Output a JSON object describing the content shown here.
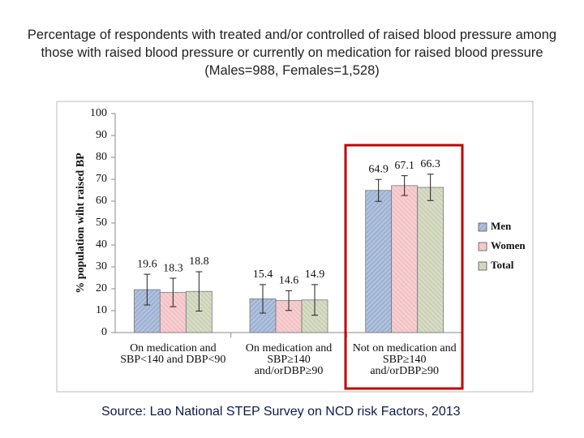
{
  "chart_data": {
    "type": "bar",
    "title": "Percentage of respondents with treated and/or controlled of raised blood pressure among those with raised blood pressure or currently on medication for raised blood pressure (Males=988, Females=1,528)",
    "y_label": "% population wiht raised BP",
    "categories": [
      "On medication and\nSBP<140 and DBP<90",
      "On medication and\nSBP≥140\nand/orDBP≥90",
      "Not on medication  and\nSBP≥140\nand/orDBP≥90"
    ],
    "series": [
      {
        "name": "Men",
        "color": "#9fb3d4",
        "values": [
          19.6,
          15.4,
          64.9
        ],
        "errors": [
          7,
          6.5,
          5
        ]
      },
      {
        "name": "Women",
        "color": "#f3c3c6",
        "values": [
          18.3,
          14.6,
          67.1
        ],
        "errors": [
          6.5,
          4.5,
          4.5
        ]
      },
      {
        "name": "Total",
        "color": "#cdd3b8",
        "values": [
          18.8,
          14.9,
          66.3
        ],
        "errors": [
          9,
          7,
          6
        ]
      }
    ],
    "ylim": [
      0,
      100
    ],
    "yticks": [
      0,
      10,
      20,
      30,
      40,
      50,
      60,
      70,
      80,
      90,
      100
    ],
    "legend": "right",
    "source": "Source: Lao National STEP Survey on NCD risk Factors, 2013"
  }
}
